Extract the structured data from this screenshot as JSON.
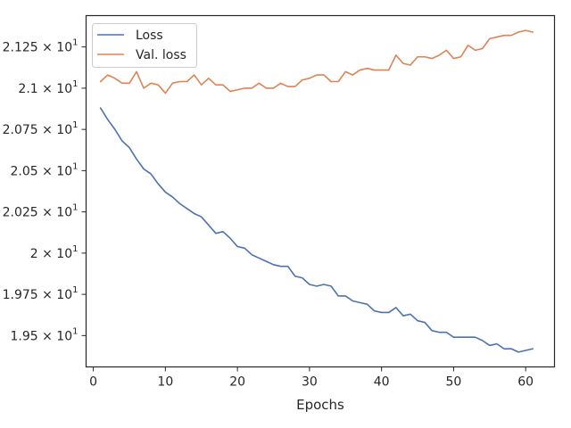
{
  "chart_data": {
    "type": "line",
    "xlabel": "Epochs",
    "ylabel": "",
    "xlim": [
      -1.0,
      64.0
    ],
    "ylim": [
      19.31,
      21.44
    ],
    "grid": false,
    "legend": "top-left",
    "x_ticks": [
      0,
      10,
      20,
      30,
      40,
      50,
      60
    ],
    "x_tick_labels": [
      "0",
      "10",
      "20",
      "30",
      "40",
      "50",
      "60"
    ],
    "y_ticks": [
      19.5,
      19.75,
      20.0,
      20.25,
      20.5,
      20.75,
      21.0,
      21.25
    ],
    "y_tick_labels": [
      {
        "mantissa": "1.95",
        "exp": "1"
      },
      {
        "mantissa": "1.975",
        "exp": "1"
      },
      {
        "mantissa": "2",
        "exp": "1"
      },
      {
        "mantissa": "2.025",
        "exp": "1"
      },
      {
        "mantissa": "2.05",
        "exp": "1"
      },
      {
        "mantissa": "2.075",
        "exp": "1"
      },
      {
        "mantissa": "2.1",
        "exp": "1"
      },
      {
        "mantissa": "2.125",
        "exp": "1"
      }
    ],
    "tick_multiplier": "× 10",
    "x": [
      1,
      2,
      3,
      4,
      5,
      6,
      7,
      8,
      9,
      10,
      11,
      12,
      13,
      14,
      15,
      16,
      17,
      18,
      19,
      20,
      21,
      22,
      23,
      24,
      25,
      26,
      27,
      28,
      29,
      30,
      31,
      32,
      33,
      34,
      35,
      36,
      37,
      38,
      39,
      40,
      41,
      42,
      43,
      44,
      45,
      46,
      47,
      48,
      49,
      50,
      51,
      52,
      53,
      54,
      55,
      56,
      57,
      58,
      59,
      60,
      61
    ],
    "series": [
      {
        "name": "Loss",
        "color": "#4c72b0",
        "values": [
          20.88,
          20.81,
          20.75,
          20.68,
          20.64,
          20.57,
          20.51,
          20.48,
          20.42,
          20.37,
          20.34,
          20.3,
          20.27,
          20.24,
          20.22,
          20.17,
          20.12,
          20.13,
          20.09,
          20.04,
          20.03,
          19.99,
          19.97,
          19.95,
          19.93,
          19.92,
          19.92,
          19.86,
          19.85,
          19.81,
          19.8,
          19.81,
          19.8,
          19.74,
          19.74,
          19.71,
          19.7,
          19.69,
          19.65,
          19.64,
          19.64,
          19.67,
          19.62,
          19.63,
          19.59,
          19.58,
          19.53,
          19.52,
          19.52,
          19.49,
          19.49,
          19.49,
          19.49,
          19.47,
          19.44,
          19.45,
          19.42,
          19.42,
          19.4,
          19.41,
          19.42
        ]
      },
      {
        "name": "Val. loss",
        "color": "#dd8452",
        "values": [
          21.04,
          21.08,
          21.06,
          21.03,
          21.03,
          21.1,
          21.0,
          21.03,
          21.02,
          20.97,
          21.03,
          21.04,
          21.04,
          21.08,
          21.02,
          21.06,
          21.02,
          21.02,
          20.98,
          20.99,
          21.0,
          21.0,
          21.03,
          21.0,
          21.0,
          21.03,
          21.01,
          21.01,
          21.05,
          21.06,
          21.08,
          21.08,
          21.04,
          21.04,
          21.1,
          21.08,
          21.11,
          21.12,
          21.11,
          21.11,
          21.11,
          21.2,
          21.15,
          21.14,
          21.19,
          21.19,
          21.18,
          21.2,
          21.23,
          21.18,
          21.19,
          21.26,
          21.23,
          21.24,
          21.3,
          21.31,
          21.32,
          21.32,
          21.34,
          21.35,
          21.34
        ]
      }
    ]
  }
}
